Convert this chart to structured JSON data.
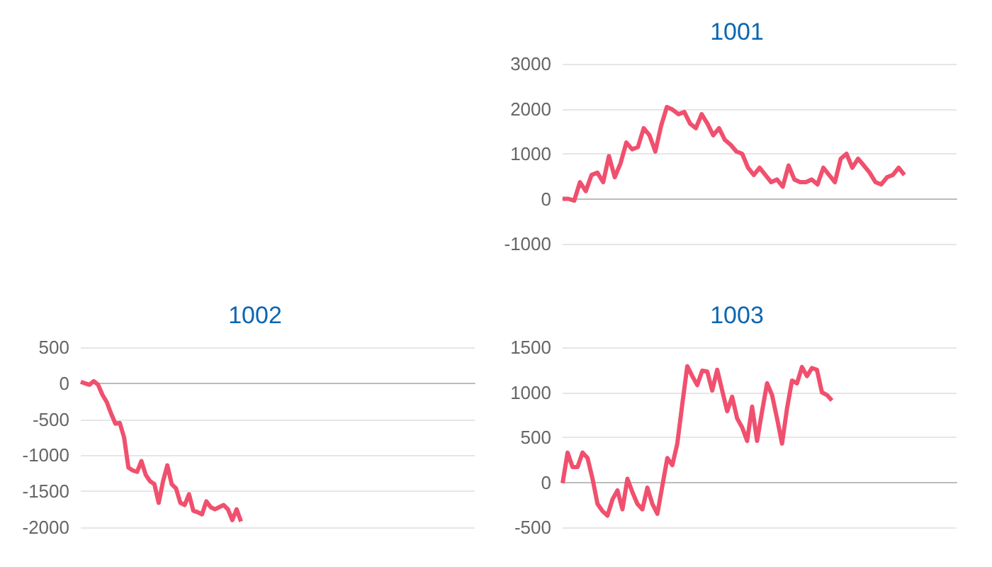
{
  "chart_data": [
    {
      "type": "line",
      "title": "1001",
      "color": "#f0506e",
      "line_style": "solid",
      "grid": "y",
      "tick_labels": "y",
      "ylim": [
        -1000,
        3000
      ],
      "yticks": [
        -1000,
        0,
        1000,
        2000,
        3000
      ],
      "categories": [
        null,
        null,
        null,
        null,
        null,
        null,
        null,
        null,
        null,
        null,
        null,
        null,
        null,
        null,
        null,
        null,
        null,
        null,
        null,
        null,
        null,
        null,
        null,
        null,
        null,
        null,
        null,
        null,
        null,
        null,
        null,
        null,
        null,
        null,
        null,
        null,
        null,
        null,
        null,
        null,
        null,
        null,
        null,
        null,
        null,
        null,
        null,
        null,
        null,
        null,
        null,
        null,
        null,
        null,
        null,
        null,
        null,
        null,
        null,
        null,
        null,
        null,
        null,
        null,
        null,
        null,
        null,
        null,
        null
      ],
      "values": [
        0,
        0,
        -40,
        370,
        170,
        530,
        580,
        370,
        950,
        480,
        790,
        1250,
        1100,
        1150,
        1570,
        1410,
        1050,
        1620,
        2040,
        1980,
        1880,
        1930,
        1670,
        1570,
        1880,
        1670,
        1410,
        1570,
        1310,
        1200,
        1050,
        1000,
        690,
        530,
        690,
        530,
        370,
        430,
        270,
        740,
        430,
        370,
        370,
        430,
        320,
        690,
        530,
        370,
        890,
        1000,
        690,
        890,
        740,
        580,
        370,
        320,
        480,
        530,
        690,
        530,
        null,
        null,
        null,
        null,
        null,
        null,
        null,
        null,
        null
      ]
    },
    {
      "type": "line",
      "title": "1002",
      "color": "#f0506e",
      "line_style": "solid",
      "grid": "y",
      "tick_labels": "y",
      "ylim": [
        -2000,
        500
      ],
      "yticks": [
        -2000,
        -1500,
        -1000,
        -500,
        0,
        500
      ],
      "categories": [
        null,
        null,
        null,
        null,
        null,
        null,
        null,
        null,
        null,
        null,
        null,
        null,
        null,
        null,
        null,
        null,
        null,
        null,
        null,
        null,
        null,
        null,
        null,
        null,
        null,
        null,
        null,
        null,
        null,
        null,
        null,
        null,
        null,
        null,
        null,
        null,
        null,
        null,
        null,
        null,
        null,
        null,
        null,
        null,
        null,
        null,
        null,
        null,
        null,
        null,
        null,
        null,
        null,
        null,
        null,
        null,
        null,
        null,
        null,
        null,
        null,
        null,
        null,
        null,
        null,
        null,
        null,
        null,
        null,
        null,
        null,
        null,
        null,
        null,
        null,
        null,
        null,
        null,
        null,
        null,
        null,
        null,
        null,
        null,
        null,
        null,
        null,
        null,
        null,
        null,
        null,
        null
      ],
      "values": [
        20,
        0,
        -20,
        30,
        -20,
        -160,
        -260,
        -420,
        -560,
        -550,
        -750,
        -1170,
        -1210,
        -1230,
        -1080,
        -1270,
        -1360,
        -1400,
        -1660,
        -1360,
        -1140,
        -1400,
        -1460,
        -1660,
        -1690,
        -1540,
        -1770,
        -1790,
        -1820,
        -1640,
        -1720,
        -1750,
        -1720,
        -1690,
        -1750,
        -1900,
        -1750,
        -1920,
        null,
        null,
        null,
        null,
        null,
        null,
        null,
        null,
        null,
        null,
        null,
        null,
        null,
        null,
        null,
        null,
        null,
        null,
        null,
        null,
        null,
        null,
        null,
        null,
        null,
        null,
        null,
        null,
        null,
        null,
        null,
        null,
        null,
        null,
        null,
        null,
        null,
        null,
        null,
        null,
        null,
        null,
        null,
        null,
        null,
        null,
        null,
        null,
        null,
        null,
        null,
        null,
        null,
        null
      ]
    },
    {
      "type": "line",
      "title": "1003",
      "color": "#f0506e",
      "line_style": "solid",
      "grid": "y",
      "tick_labels": "y",
      "ylim": [
        -500,
        1500
      ],
      "yticks": [
        -500,
        0,
        500,
        1000,
        1500
      ],
      "categories": [
        null,
        null,
        null,
        null,
        null,
        null,
        null,
        null,
        null,
        null,
        null,
        null,
        null,
        null,
        null,
        null,
        null,
        null,
        null,
        null,
        null,
        null,
        null,
        null,
        null,
        null,
        null,
        null,
        null,
        null,
        null,
        null,
        null,
        null,
        null,
        null,
        null,
        null,
        null,
        null,
        null,
        null,
        null,
        null,
        null,
        null,
        null,
        null,
        null,
        null,
        null,
        null,
        null,
        null,
        null,
        null,
        null,
        null,
        null,
        null,
        null,
        null,
        null,
        null,
        null,
        null,
        null,
        null,
        null,
        null,
        null,
        null,
        null,
        null,
        null,
        null,
        null,
        null,
        null,
        null
      ],
      "values": [
        -10,
        330,
        170,
        170,
        330,
        270,
        40,
        -240,
        -320,
        -370,
        -190,
        -90,
        -300,
        40,
        -110,
        -240,
        -300,
        -60,
        -240,
        -350,
        -40,
        270,
        190,
        430,
        870,
        1290,
        1180,
        1080,
        1240,
        1230,
        1020,
        1250,
        1020,
        790,
        950,
        710,
        610,
        460,
        840,
        460,
        790,
        1100,
        970,
        710,
        430,
        820,
        1130,
        1100,
        1280,
        1180,
        1270,
        1250,
        1000,
        970,
        910,
        null,
        null,
        null,
        null,
        null,
        null,
        null,
        null,
        null,
        null,
        null,
        null,
        null,
        null,
        null,
        null,
        null,
        null,
        null,
        null,
        null,
        null,
        null,
        null,
        null
      ]
    }
  ]
}
